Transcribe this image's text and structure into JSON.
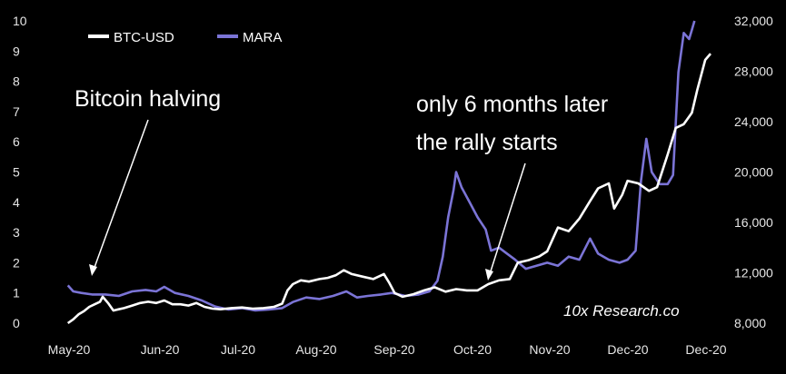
{
  "colors": {
    "background": "#000000",
    "btc": "#ffffff",
    "mara": "#7b74d6",
    "text": "#e6e6e6"
  },
  "chart_data": {
    "type": "line",
    "title": "",
    "xlabel": "",
    "ylabel": "",
    "grid": false,
    "legend_position": "top-left",
    "watermark": "10x Research.co",
    "x_ticks": [
      "May-20",
      "Jun-20",
      "Jul-20",
      "Aug-20",
      "Sep-20",
      "Oct-20",
      "Nov-20",
      "Dec-20",
      "Dec-20"
    ],
    "y_left": {
      "series": "MARA",
      "min": 0,
      "max": 10,
      "ticks": [
        "0",
        "1",
        "2",
        "3",
        "4",
        "5",
        "6",
        "7",
        "8",
        "9",
        "10"
      ]
    },
    "y_right": {
      "series": "BTC-USD",
      "min": 8000,
      "max": 32000,
      "ticks": [
        "8,000",
        "12,000",
        "16,000",
        "20,000",
        "24,000",
        "28,000",
        "32,000"
      ]
    },
    "annotations": [
      {
        "lines": [
          "Bitcoin  halving"
        ],
        "date": "2020-05-11"
      },
      {
        "lines": [
          "only 6 months later",
          "the rally starts"
        ],
        "date": "2020-10-08"
      }
    ],
    "series": [
      {
        "name": "BTC-USD",
        "axis": "right",
        "points": [
          [
            "2020-05-06",
            8000
          ],
          [
            "2020-05-08",
            8300
          ],
          [
            "2020-05-10",
            8700
          ],
          [
            "2020-05-12",
            8950
          ],
          [
            "2020-05-14",
            9300
          ],
          [
            "2020-05-16",
            9500
          ],
          [
            "2020-05-18",
            9700
          ],
          [
            "2020-05-19",
            10100
          ],
          [
            "2020-05-21",
            9600
          ],
          [
            "2020-05-23",
            9000
          ],
          [
            "2020-05-25",
            9100
          ],
          [
            "2020-05-27",
            9200
          ],
          [
            "2020-05-30",
            9400
          ],
          [
            "2020-06-02",
            9600
          ],
          [
            "2020-06-05",
            9700
          ],
          [
            "2020-06-08",
            9600
          ],
          [
            "2020-06-11",
            9800
          ],
          [
            "2020-06-14",
            9500
          ],
          [
            "2020-06-17",
            9500
          ],
          [
            "2020-06-20",
            9400
          ],
          [
            "2020-06-23",
            9600
          ],
          [
            "2020-06-26",
            9300
          ],
          [
            "2020-06-29",
            9150
          ],
          [
            "2020-07-02",
            9100
          ],
          [
            "2020-07-06",
            9200
          ],
          [
            "2020-07-10",
            9250
          ],
          [
            "2020-07-14",
            9150
          ],
          [
            "2020-07-18",
            9200
          ],
          [
            "2020-07-22",
            9300
          ],
          [
            "2020-07-25",
            9550
          ],
          [
            "2020-07-27",
            10600
          ],
          [
            "2020-07-29",
            11100
          ],
          [
            "2020-08-01",
            11400
          ],
          [
            "2020-08-04",
            11300
          ],
          [
            "2020-08-08",
            11500
          ],
          [
            "2020-08-11",
            11600
          ],
          [
            "2020-08-14",
            11800
          ],
          [
            "2020-08-17",
            12200
          ],
          [
            "2020-08-20",
            11900
          ],
          [
            "2020-08-24",
            11700
          ],
          [
            "2020-08-28",
            11500
          ],
          [
            "2020-09-01",
            11900
          ],
          [
            "2020-09-03",
            11200
          ],
          [
            "2020-09-05",
            10400
          ],
          [
            "2020-09-08",
            10100
          ],
          [
            "2020-09-12",
            10300
          ],
          [
            "2020-09-16",
            10600
          ],
          [
            "2020-09-20",
            10850
          ],
          [
            "2020-09-24",
            10500
          ],
          [
            "2020-09-28",
            10700
          ],
          [
            "2020-10-02",
            10600
          ],
          [
            "2020-10-06",
            10600
          ],
          [
            "2020-10-10",
            11100
          ],
          [
            "2020-10-14",
            11400
          ],
          [
            "2020-10-18",
            11500
          ],
          [
            "2020-10-21",
            12800
          ],
          [
            "2020-10-25",
            13000
          ],
          [
            "2020-10-29",
            13300
          ],
          [
            "2020-11-01",
            13700
          ],
          [
            "2020-11-05",
            15600
          ],
          [
            "2020-11-09",
            15300
          ],
          [
            "2020-11-13",
            16300
          ],
          [
            "2020-11-17",
            17700
          ],
          [
            "2020-11-20",
            18700
          ],
          [
            "2020-11-24",
            19100
          ],
          [
            "2020-11-26",
            17100
          ],
          [
            "2020-11-29",
            18200
          ],
          [
            "2020-12-01",
            19300
          ],
          [
            "2020-12-05",
            19100
          ],
          [
            "2020-12-09",
            18500
          ],
          [
            "2020-12-12",
            18800
          ],
          [
            "2020-12-16",
            21400
          ],
          [
            "2020-12-19",
            23500
          ],
          [
            "2020-12-22",
            23800
          ],
          [
            "2020-12-25",
            24700
          ],
          [
            "2020-12-27",
            26500
          ],
          [
            "2020-12-30",
            28900
          ],
          [
            "2021-01-01",
            29400
          ]
        ]
      },
      {
        "name": "MARA",
        "axis": "left",
        "points": [
          [
            "2020-05-06",
            1.25
          ],
          [
            "2020-05-08",
            1.05
          ],
          [
            "2020-05-11",
            1.0
          ],
          [
            "2020-05-15",
            0.95
          ],
          [
            "2020-05-20",
            0.95
          ],
          [
            "2020-05-25",
            0.9
          ],
          [
            "2020-05-30",
            1.05
          ],
          [
            "2020-06-04",
            1.1
          ],
          [
            "2020-06-08",
            1.05
          ],
          [
            "2020-06-11",
            1.2
          ],
          [
            "2020-06-15",
            1.0
          ],
          [
            "2020-06-20",
            0.9
          ],
          [
            "2020-06-25",
            0.75
          ],
          [
            "2020-06-30",
            0.55
          ],
          [
            "2020-07-05",
            0.45
          ],
          [
            "2020-07-10",
            0.5
          ],
          [
            "2020-07-15",
            0.42
          ],
          [
            "2020-07-20",
            0.45
          ],
          [
            "2020-07-25",
            0.5
          ],
          [
            "2020-07-29",
            0.7
          ],
          [
            "2020-08-03",
            0.85
          ],
          [
            "2020-08-08",
            0.8
          ],
          [
            "2020-08-13",
            0.9
          ],
          [
            "2020-08-18",
            1.05
          ],
          [
            "2020-08-22",
            0.85
          ],
          [
            "2020-08-26",
            0.9
          ],
          [
            "2020-08-31",
            0.95
          ],
          [
            "2020-09-04",
            1.0
          ],
          [
            "2020-09-09",
            0.9
          ],
          [
            "2020-09-14",
            0.95
          ],
          [
            "2020-09-18",
            1.05
          ],
          [
            "2020-09-21",
            1.4
          ],
          [
            "2020-09-23",
            2.2
          ],
          [
            "2020-09-25",
            3.5
          ],
          [
            "2020-09-27",
            4.4
          ],
          [
            "2020-09-28",
            5.0
          ],
          [
            "2020-09-30",
            4.5
          ],
          [
            "2020-10-03",
            4.0
          ],
          [
            "2020-10-06",
            3.5
          ],
          [
            "2020-10-09",
            3.1
          ],
          [
            "2020-10-11",
            2.4
          ],
          [
            "2020-10-14",
            2.5
          ],
          [
            "2020-10-17",
            2.3
          ],
          [
            "2020-10-20",
            2.1
          ],
          [
            "2020-10-24",
            1.8
          ],
          [
            "2020-10-28",
            1.9
          ],
          [
            "2020-11-01",
            2.0
          ],
          [
            "2020-11-05",
            1.9
          ],
          [
            "2020-11-09",
            2.2
          ],
          [
            "2020-11-13",
            2.1
          ],
          [
            "2020-11-17",
            2.8
          ],
          [
            "2020-11-20",
            2.3
          ],
          [
            "2020-11-24",
            2.1
          ],
          [
            "2020-11-28",
            2.0
          ],
          [
            "2020-12-01",
            2.1
          ],
          [
            "2020-12-04",
            2.4
          ],
          [
            "2020-12-06",
            4.7
          ],
          [
            "2020-12-08",
            6.1
          ],
          [
            "2020-12-10",
            5.0
          ],
          [
            "2020-12-13",
            4.6
          ],
          [
            "2020-12-16",
            4.6
          ],
          [
            "2020-12-18",
            4.9
          ],
          [
            "2020-12-20",
            8.3
          ],
          [
            "2020-12-22",
            9.6
          ],
          [
            "2020-12-24",
            9.4
          ],
          [
            "2020-12-25",
            9.7
          ],
          [
            "2020-12-26",
            10.0
          ]
        ]
      }
    ]
  }
}
